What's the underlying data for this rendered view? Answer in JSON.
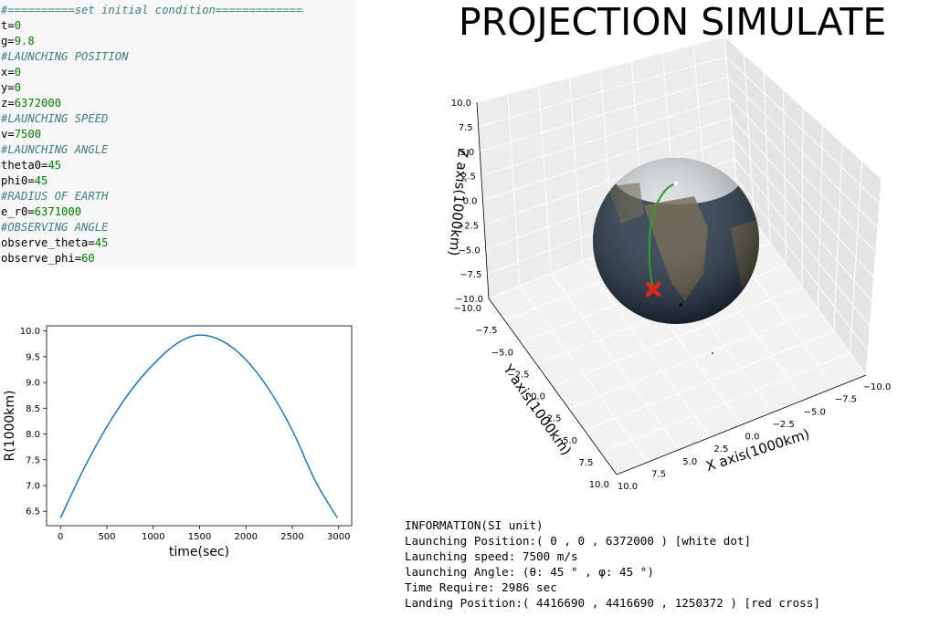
{
  "code": [
    {
      "kind": "comment",
      "text": "#==========set initial condition============="
    },
    {
      "kind": "assign",
      "name": "t",
      "value": "0"
    },
    {
      "kind": "assign",
      "name": "g",
      "value": "9.8"
    },
    {
      "kind": "comment",
      "text": "#LAUNCHING POSITION"
    },
    {
      "kind": "assign",
      "name": "x",
      "value": "0"
    },
    {
      "kind": "assign",
      "name": "y",
      "value": "0"
    },
    {
      "kind": "assign",
      "name": "z",
      "value": "6372000"
    },
    {
      "kind": "comment",
      "text": "#LAUNCHING SPEED"
    },
    {
      "kind": "assign",
      "name": "v",
      "value": "7500"
    },
    {
      "kind": "comment",
      "text": "#LAUNCHING ANGLE"
    },
    {
      "kind": "assign",
      "name": "theta0",
      "value": "45"
    },
    {
      "kind": "assign",
      "name": "phi0",
      "value": "45"
    },
    {
      "kind": "comment",
      "text": "#RADIUS OF EARTH"
    },
    {
      "kind": "assign",
      "name": "e_r0",
      "value": "6371000"
    },
    {
      "kind": "comment",
      "text": "#OBSERVING ANGLE"
    },
    {
      "kind": "assign",
      "name": "observe_theta",
      "value": "45"
    },
    {
      "kind": "assign",
      "name": "observe_phi",
      "value": "60"
    }
  ],
  "title": "PROJECTION SIMULATE",
  "chart_data": [
    {
      "type": "line",
      "xlabel": "time(sec)",
      "ylabel": "R(1000km)",
      "xlim": [
        -150,
        3140
      ],
      "ylim": [
        6.22,
        10.1
      ],
      "xticks": [
        0,
        500,
        1000,
        1500,
        2000,
        2500,
        3000
      ],
      "yticks": [
        6.5,
        7.0,
        7.5,
        8.0,
        8.5,
        9.0,
        9.5,
        10.0
      ],
      "ytick_labels": [
        "6.5",
        "7.0",
        "7.5",
        "8.0",
        "8.5",
        "9.0",
        "9.5",
        "10.0"
      ],
      "series": [
        {
          "color": "#1f77b4",
          "x": [
            0,
            250,
            500,
            750,
            1000,
            1250,
            1493,
            1750,
            2000,
            2250,
            2500,
            2750,
            2986
          ],
          "y": [
            6.37,
            7.32,
            8.14,
            8.82,
            9.35,
            9.75,
            9.92,
            9.8,
            9.44,
            8.86,
            8.07,
            7.08,
            6.37
          ]
        }
      ]
    },
    {
      "type": "3d",
      "xlabel": "X axis(1000km)",
      "ylabel": "Y axis(1000km)",
      "zlabel": "Z axis(1000km)",
      "xlim": [
        -10,
        10
      ],
      "ylim": [
        -10,
        10
      ],
      "zlim": [
        -10,
        10
      ],
      "ticks": [
        -10.0,
        -7.5,
        -5.0,
        -2.5,
        0.0,
        2.5,
        5.0,
        7.5,
        10.0
      ],
      "tick_labels": [
        "−10.0",
        "−7.5",
        "−5.0",
        "−2.5",
        "0.0",
        "2.5",
        "5.0",
        "7.5",
        "10.0"
      ],
      "trajectory_color": "#2ca02c",
      "landing_marker_color": "#e8231a",
      "sphere_colors": {
        "ocean": "#27394a",
        "land": "#6b5e46",
        "ice": "#e8ecef"
      }
    }
  ],
  "info": [
    "INFORMATION(SI unit)",
    "Launching Position:( 0 , 0 , 6372000 ) [white dot]",
    "Launching speed: 7500 m/s",
    "launching Angle: (θ: 45 ° , φ: 45 °)",
    "Time Require: 2986 sec",
    "Landing Position:( 4416690 , 4416690 , 1250372 ) [red cross]"
  ]
}
